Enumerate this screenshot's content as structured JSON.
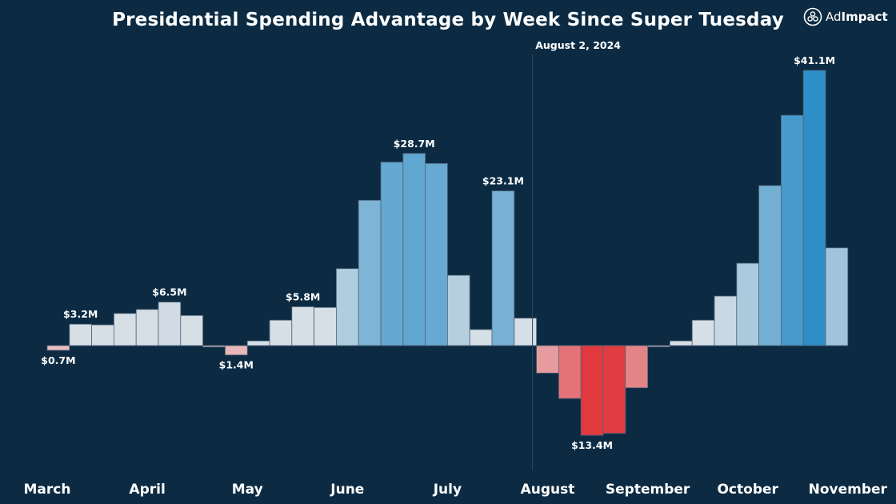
{
  "chart_data": {
    "type": "bar",
    "title": "Presidential Spending Advantage by Week Since Super Tuesday",
    "annotation": "August 2, 2024",
    "annotation_after_week": 22,
    "month_labels": [
      "March",
      "April",
      "May",
      "June",
      "July",
      "August",
      "September",
      "October",
      "November"
    ],
    "month_label_week_index": [
      0,
      4.5,
      9,
      13.5,
      18,
      22.5,
      27,
      31.5,
      36
    ],
    "values": [
      -0.7,
      3.2,
      3.1,
      4.8,
      5.4,
      6.5,
      4.5,
      -0.2,
      -1.4,
      0.7,
      3.8,
      5.8,
      5.7,
      11.5,
      21.7,
      27.4,
      28.7,
      27.2,
      10.5,
      2.4,
      23.1,
      4.1,
      -4.1,
      -7.9,
      -13.4,
      -13.1,
      -6.3,
      -0.1,
      0.7,
      3.8,
      7.4,
      12.3,
      23.9,
      34.4,
      41.1,
      14.6
    ],
    "data_labels": [
      {
        "index": 0,
        "text": "$0.7M"
      },
      {
        "index": 1,
        "text": "$3.2M"
      },
      {
        "index": 5,
        "text": "$6.5M"
      },
      {
        "index": 8,
        "text": "$1.4M"
      },
      {
        "index": 11,
        "text": "$5.8M"
      },
      {
        "index": 16,
        "text": "$28.7M"
      },
      {
        "index": 20,
        "text": "$23.1M"
      },
      {
        "index": 24,
        "text": "$13.4M"
      },
      {
        "index": 34,
        "text": "$41.1M"
      }
    ],
    "ylim": [
      -13.4,
      41.1
    ],
    "grid": false,
    "colors": {
      "positive_low": "#d6dee6",
      "positive_high": "#2e8ec8",
      "negative_low": "#e9c6c8",
      "negative_high": "#e0393e",
      "background": "#0c2b43"
    }
  },
  "brand": {
    "logo_text_light": "Ad",
    "logo_text_bold": "Impact"
  }
}
